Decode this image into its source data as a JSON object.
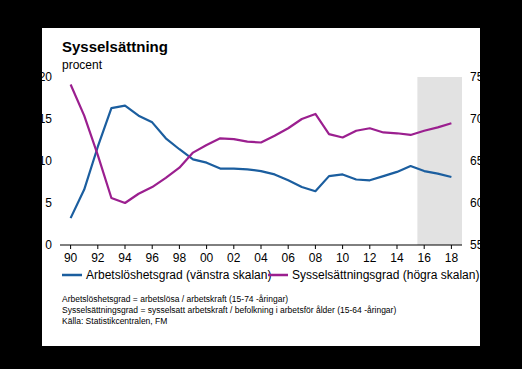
{
  "chart_data": {
    "type": "line",
    "title": "Sysselsättning",
    "y_label": "procent",
    "categories": [
      "90",
      null,
      "92",
      null,
      "94",
      null,
      "96",
      null,
      "98",
      null,
      "00",
      null,
      "02",
      null,
      "04",
      null,
      "06",
      null,
      "08",
      null,
      "10",
      null,
      "12",
      null,
      "14",
      null,
      "16",
      null,
      "18"
    ],
    "series": [
      {
        "name": "Arbetslöshetsgrad (vänstra skalan)",
        "color": "#1b5e9f",
        "values": [
          3.2,
          6.6,
          11.7,
          16.3,
          16.6,
          15.4,
          14.6,
          12.7,
          11.4,
          10.2,
          9.8,
          9.1,
          9.1,
          9.0,
          8.8,
          8.4,
          7.7,
          6.9,
          6.4,
          8.2,
          8.4,
          7.8,
          7.7,
          8.2,
          8.7,
          9.4,
          8.8,
          8.5,
          8.1
        ]
      },
      {
        "name": "Sysselsättningsgrad (högra skalan)",
        "color": "#9b1f8f",
        "axis": "y2",
        "values": [
          74.1,
          70.4,
          65.7,
          60.6,
          60.0,
          61.1,
          61.9,
          63.0,
          64.2,
          66.0,
          66.9,
          67.7,
          67.6,
          67.3,
          67.2,
          68.0,
          68.9,
          70.0,
          70.6,
          68.2,
          67.8,
          68.6,
          68.9,
          68.4,
          68.3,
          68.1,
          68.6,
          69.0,
          69.5
        ]
      }
    ],
    "ylim": [
      0,
      20
    ],
    "yticks": [
      0,
      5,
      10,
      15,
      20
    ],
    "y2lim": [
      55,
      75
    ],
    "y2ticks": [
      55,
      60,
      65,
      70,
      75
    ],
    "shaded": {
      "from": "16",
      "to": "18"
    },
    "notes": [
      "Arbetslöshetsgrad = arbetslösa / arbetskraft (15-74 -åringar)",
      "Sysselsättningsgrad = sysselsatt arbetskraft / befolkning i arbetsför ålder  (15-64 -åringar)",
      "Källa: Statistikcentralen, FM"
    ],
    "legend": "bottom",
    "grid": false
  }
}
